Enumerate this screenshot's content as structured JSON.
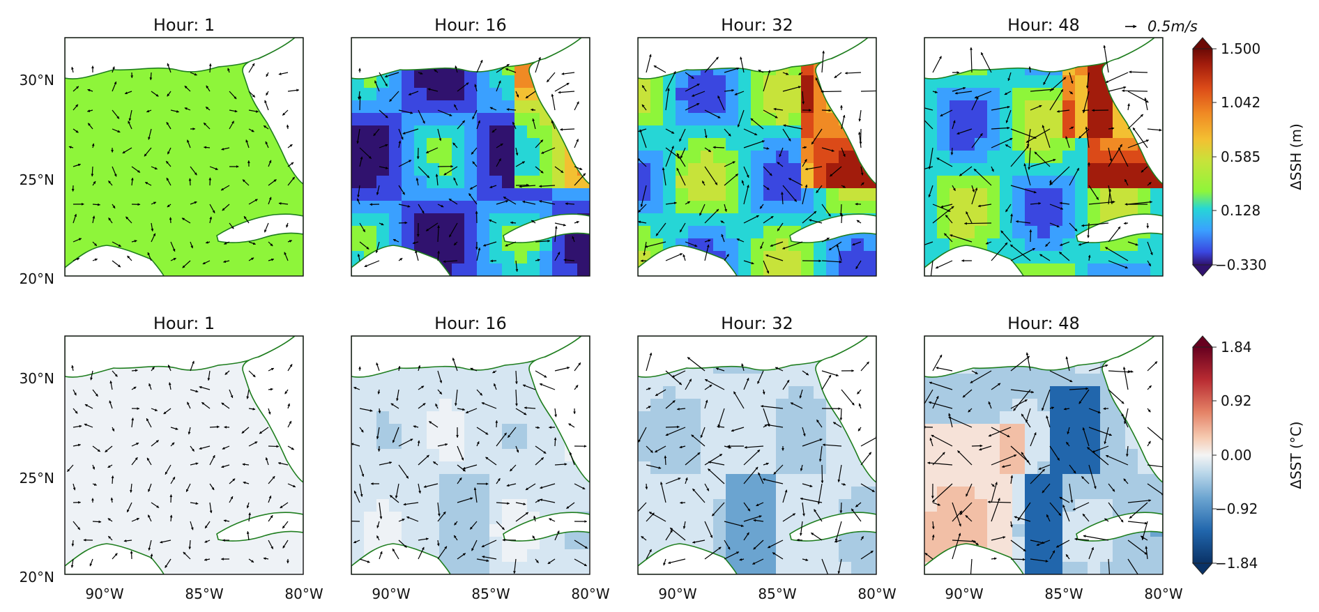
{
  "figure": {
    "rows": [
      {
        "variable": "SSH",
        "panels": [
          {
            "title": "Hour: 1",
            "hour": 1
          },
          {
            "title": "Hour: 16",
            "hour": 16
          },
          {
            "title": "Hour: 32",
            "hour": 32
          },
          {
            "title": "Hour: 48",
            "hour": 48
          }
        ],
        "colorbar": {
          "label": "ΔSSH (m)",
          "ticks": [
            "1.500",
            "1.042",
            "0.585",
            "0.128",
            "−0.330"
          ],
          "colormap": "jet",
          "range": [
            -0.33,
            1.5
          ]
        }
      },
      {
        "variable": "SST",
        "panels": [
          {
            "title": "Hour: 1",
            "hour": 1
          },
          {
            "title": "Hour: 16",
            "hour": 16
          },
          {
            "title": "Hour: 32",
            "hour": 32
          },
          {
            "title": "Hour: 48",
            "hour": 48
          }
        ],
        "colorbar": {
          "label": "ΔSST (°C)",
          "ticks": [
            "1.84",
            "0.92",
            "0.00",
            "−0.92",
            "−1.84"
          ],
          "colormap": "RdBu_r",
          "range": [
            -1.84,
            1.84
          ]
        }
      }
    ],
    "lat_ticks": [
      "30°N",
      "25°N",
      "20°N"
    ],
    "lon_ticks": [
      "90°W",
      "85°W",
      "80°W"
    ],
    "quiver_key": {
      "label": "0.5m/s"
    },
    "extent": {
      "lon": [
        -92,
        -80
      ],
      "lat": [
        20,
        32
      ]
    },
    "colors": {
      "coastline": "#1e7d1e",
      "land": "#ffffff",
      "ssh_flat": "#8ef53a",
      "sst_flat": "#eef2f6",
      "arrow": "#000000"
    }
  }
}
